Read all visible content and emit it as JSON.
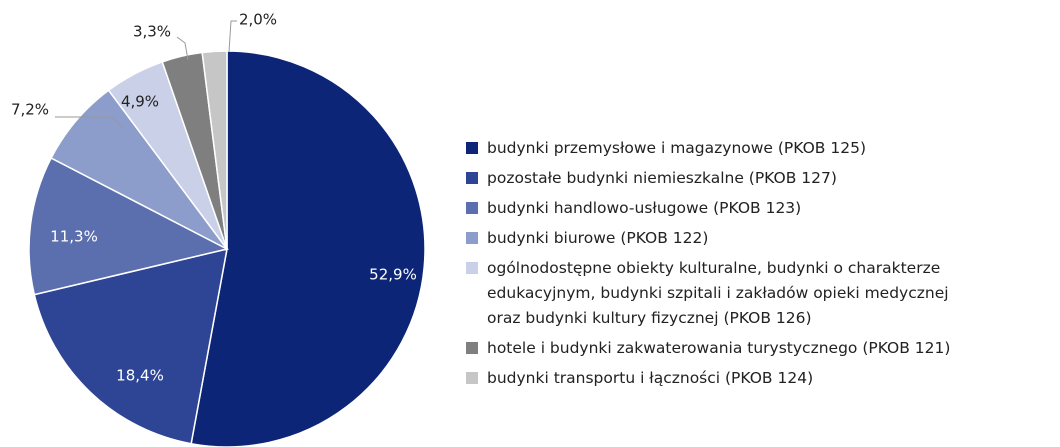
{
  "chart_data": {
    "type": "pie",
    "categories": [
      "budynki przemysłowe i magazynowe (PKOB 125)",
      "pozostałe budynki niemieszkalne (PKOB 127)",
      "budynki handlowo-usługowe (PKOB 123)",
      "budynki biurowe (PKOB 122)",
      "ogólnodostępne obiekty kulturalne, budynki o charakterze\nedukacyjnym, budynki szpitali i zakładów opieki medycznej\noraz budynki kultury fizycznej (PKOB 126)",
      "hotele i budynki zakwaterowania turystycznego (PKOB 121)",
      "budynki transportu i łączności (PKOB 124)"
    ],
    "values": [
      52.9,
      18.4,
      11.3,
      7.2,
      4.9,
      3.3,
      2.0
    ],
    "value_labels": [
      "52,9%",
      "18,4%",
      "11,3%",
      "7,2%",
      "4,9%",
      "3,3%",
      "2,0%"
    ],
    "colors": [
      "#0c2577",
      "#2e4595",
      "#5b6fae",
      "#8d9dcb",
      "#c9d0e8",
      "#7f7f7f",
      "#c6c6c6"
    ],
    "legend": "right"
  }
}
